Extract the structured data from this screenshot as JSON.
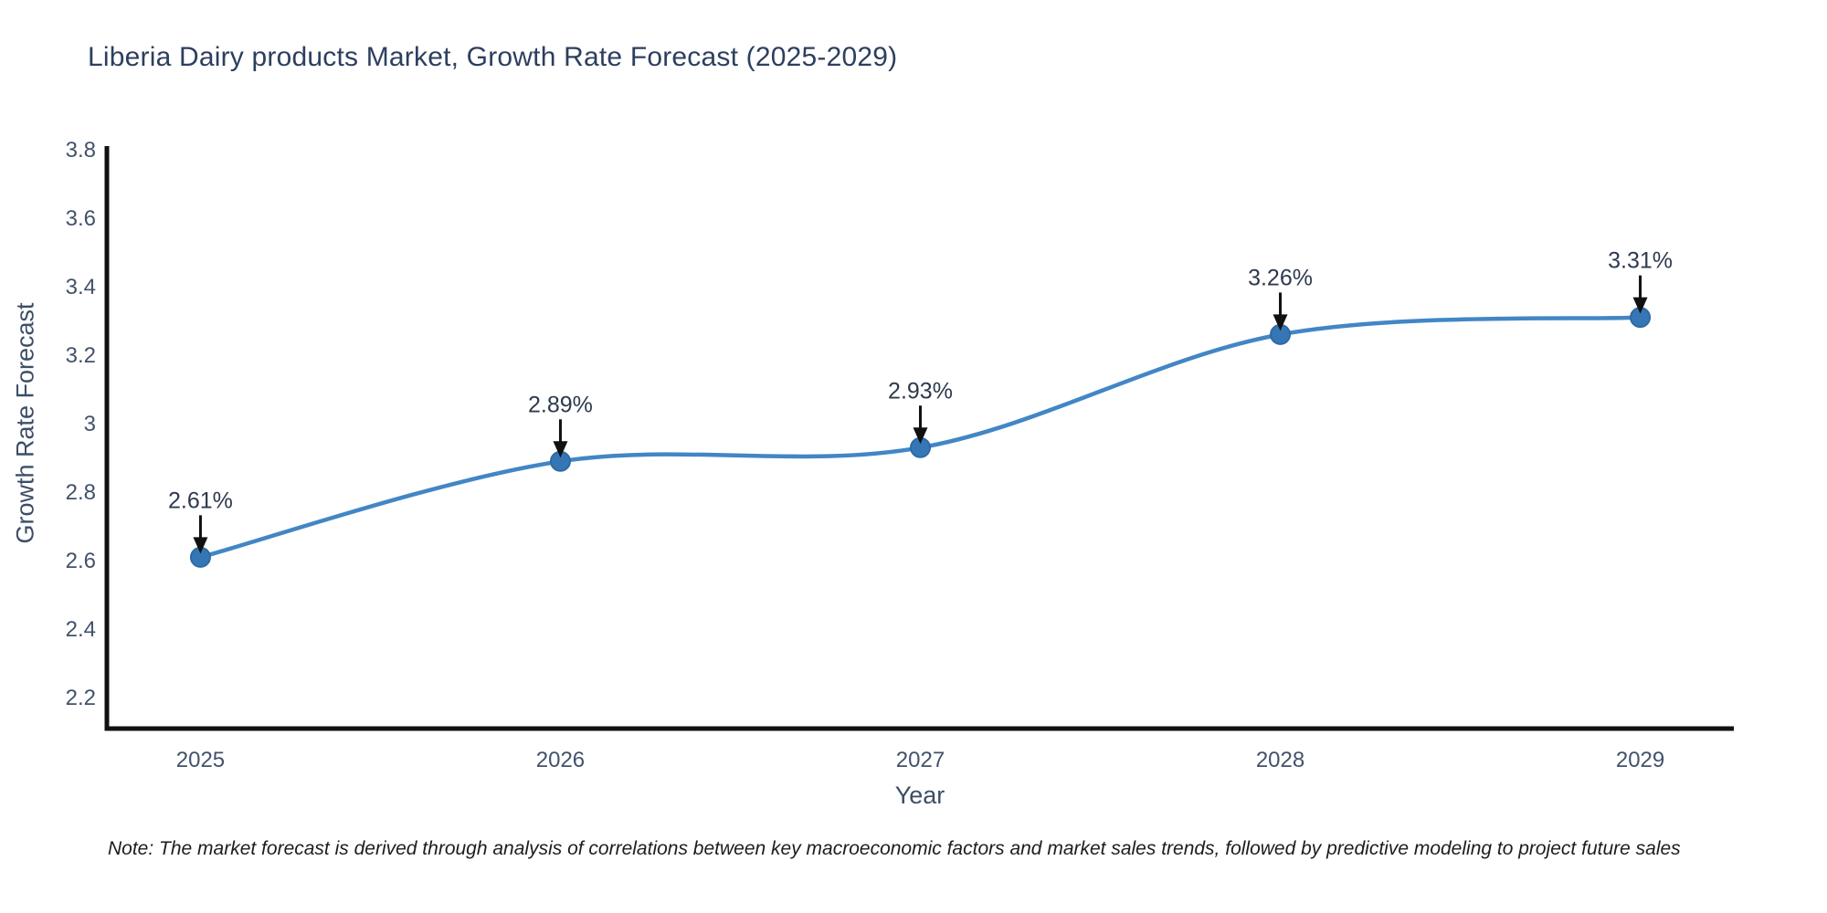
{
  "title": "Liberia Dairy products Market, Growth Rate Forecast (2025-2029)",
  "note": "Note: The market forecast is derived through analysis of correlations between key macroeconomic factors and market sales trends, followed by predictive modeling to project future sales",
  "chart_data": {
    "type": "line",
    "title": "Liberia Dairy products Market, Growth Rate Forecast (2025-2029)",
    "xlabel": "Year",
    "ylabel": "Growth Rate Forecast",
    "x": [
      2025,
      2026,
      2027,
      2028,
      2029
    ],
    "values": [
      2.61,
      2.89,
      2.93,
      3.26,
      3.31
    ],
    "point_labels": [
      "2.61%",
      "2.89%",
      "2.93%",
      "3.26%",
      "3.31%"
    ],
    "x_tick_labels": [
      "2025",
      "2026",
      "2027",
      "2028",
      "2029"
    ],
    "yticks": [
      2.2,
      2.4,
      2.6,
      2.8,
      3,
      3.2,
      3.4,
      3.6,
      3.8
    ],
    "ytick_labels": [
      "2.2",
      "2.4",
      "2.6",
      "2.8",
      "3",
      "3.2",
      "3.4",
      "3.6",
      "3.8"
    ],
    "ylim": [
      2.11,
      3.81
    ],
    "xlim": [
      2024.74,
      2029.26
    ],
    "grid": false,
    "legend": "none",
    "line_shape": "spline",
    "line_color": "#4286c5",
    "marker_color": "#3577b5",
    "marker_edge_color": "#2e6aa5",
    "axis_color": "#111111",
    "annotation_arrow_color": "#111111"
  }
}
